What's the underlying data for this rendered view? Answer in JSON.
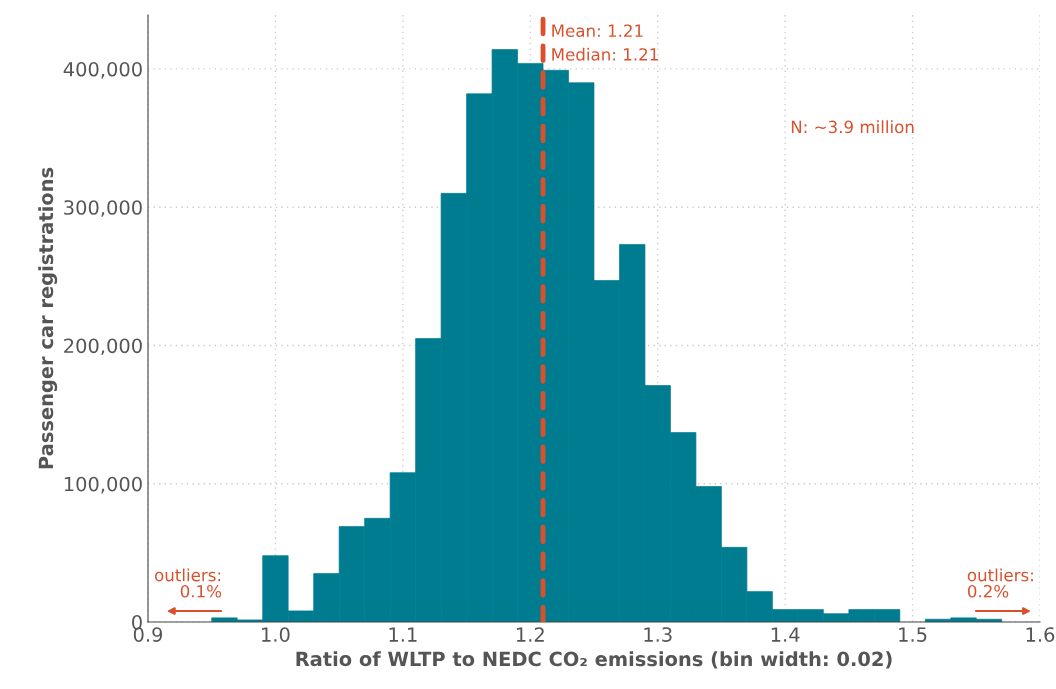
{
  "chart_data": {
    "type": "histogram",
    "xlabel": "Ratio of WLTP to NEDC CO₂ emissions (bin width: 0.02)",
    "ylabel": "Passenger car registrations",
    "bins": [
      0.95,
      0.97,
      0.99,
      1.01,
      1.03,
      1.05,
      1.07,
      1.09,
      1.11,
      1.13,
      1.15,
      1.17,
      1.19,
      1.21,
      1.23,
      1.25,
      1.27,
      1.29,
      1.31,
      1.33,
      1.35,
      1.37,
      1.39,
      1.41,
      1.43,
      1.45,
      1.47,
      1.49,
      1.51,
      1.53,
      1.55,
      1.57,
      1.59
    ],
    "values": [
      3000,
      1500,
      48000,
      8000,
      35000,
      69000,
      75000,
      108000,
      205000,
      310000,
      382000,
      414000,
      404000,
      399000,
      390000,
      247000,
      273000,
      171000,
      137000,
      98000,
      54000,
      22000,
      9000,
      9000,
      6000,
      9000,
      9000,
      null,
      2000,
      3000,
      2000,
      null
    ],
    "color": "#007c91",
    "xlim": [
      0.9,
      1.6
    ],
    "xticks": [
      0.9,
      {
        "value": 1.0,
        "label": "1.0"
      },
      1.1,
      1.2,
      1.3,
      1.4,
      1.5,
      1.6
    ],
    "ylim": [
      0,
      439000
    ],
    "yticks": [
      0,
      {
        "value": 100000,
        "label": "100,000"
      },
      {
        "value": 200000,
        "label": "200,000"
      },
      {
        "value": 300000,
        "label": "300,000"
      },
      {
        "value": 400000,
        "label": "400,000"
      }
    ],
    "grid": true,
    "ref_lines": [
      {
        "axis": "x",
        "value": 1.21,
        "label": "Mean: 1.21\nMedian: 1.21",
        "color": "#d9512c",
        "line_style": "dashed"
      }
    ],
    "annotations": [
      "N: ~3.9 million",
      "outliers:\n0.1%",
      "outliers:\n0.2%"
    ]
  }
}
